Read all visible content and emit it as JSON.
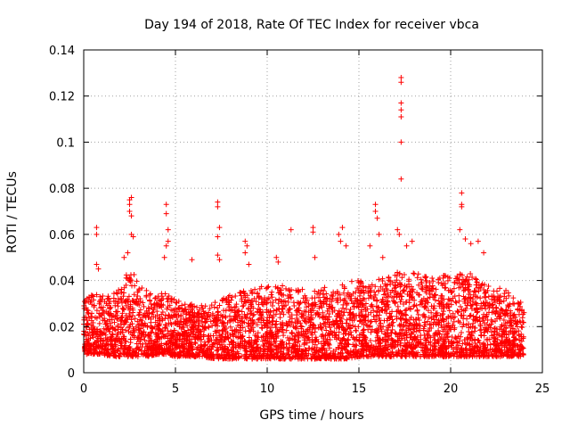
{
  "chart_data": {
    "type": "scatter",
    "title": "Day 194 of 2018, Rate Of TEC Index for receiver vbca",
    "xlabel": "GPS time / hours",
    "ylabel": "ROTI / TECUs",
    "xlim": [
      0,
      25
    ],
    "ylim": [
      0,
      0.14
    ],
    "xticks": [
      "0",
      "5",
      "10",
      "15",
      "20",
      "25"
    ],
    "yticks": [
      "0",
      "0.02",
      "0.04",
      "0.06",
      "0.08",
      "0.1",
      "0.12",
      "0.14"
    ],
    "grid": true,
    "marker": "+",
    "marker_color": "#ff0000",
    "density_envelope": {
      "x": [
        0,
        0.5,
        1,
        1.5,
        2,
        2.5,
        3,
        3.5,
        4,
        4.5,
        5,
        5.5,
        6,
        6.5,
        7,
        7.5,
        8,
        8.5,
        9,
        9.5,
        10,
        10.5,
        11,
        11.5,
        12,
        12.5,
        13,
        13.5,
        14,
        14.5,
        15,
        15.5,
        16,
        16.5,
        17,
        17.5,
        18,
        18.5,
        19,
        19.5,
        20,
        20.5,
        21,
        21.5,
        22,
        22.5,
        23,
        23.5,
        24
      ],
      "y_low": [
        0.008,
        0.008,
        0.008,
        0.007,
        0.007,
        0.007,
        0.007,
        0.007,
        0.008,
        0.008,
        0.007,
        0.007,
        0.007,
        0.007,
        0.006,
        0.006,
        0.006,
        0.006,
        0.006,
        0.006,
        0.006,
        0.006,
        0.006,
        0.006,
        0.006,
        0.006,
        0.006,
        0.006,
        0.006,
        0.006,
        0.007,
        0.007,
        0.007,
        0.007,
        0.007,
        0.007,
        0.007,
        0.007,
        0.007,
        0.007,
        0.007,
        0.007,
        0.007,
        0.007,
        0.007,
        0.007,
        0.007,
        0.007,
        0.007
      ],
      "y_high": [
        0.032,
        0.034,
        0.035,
        0.033,
        0.038,
        0.046,
        0.04,
        0.035,
        0.034,
        0.035,
        0.032,
        0.03,
        0.03,
        0.029,
        0.03,
        0.032,
        0.034,
        0.035,
        0.036,
        0.037,
        0.038,
        0.038,
        0.038,
        0.037,
        0.036,
        0.036,
        0.037,
        0.038,
        0.039,
        0.04,
        0.04,
        0.04,
        0.041,
        0.042,
        0.044,
        0.045,
        0.044,
        0.043,
        0.042,
        0.042,
        0.043,
        0.047,
        0.044,
        0.04,
        0.038,
        0.037,
        0.036,
        0.035,
        0.033
      ]
    },
    "outliers": [
      {
        "x": 0.7,
        "y": 0.063
      },
      {
        "x": 0.7,
        "y": 0.06
      },
      {
        "x": 0.7,
        "y": 0.047
      },
      {
        "x": 0.8,
        "y": 0.045
      },
      {
        "x": 2.4,
        "y": 0.052
      },
      {
        "x": 2.5,
        "y": 0.075
      },
      {
        "x": 2.5,
        "y": 0.073
      },
      {
        "x": 2.5,
        "y": 0.07
      },
      {
        "x": 2.6,
        "y": 0.076
      },
      {
        "x": 2.6,
        "y": 0.068
      },
      {
        "x": 2.6,
        "y": 0.06
      },
      {
        "x": 2.7,
        "y": 0.059
      },
      {
        "x": 2.2,
        "y": 0.05
      },
      {
        "x": 4.5,
        "y": 0.073
      },
      {
        "x": 4.5,
        "y": 0.069
      },
      {
        "x": 4.6,
        "y": 0.062
      },
      {
        "x": 4.6,
        "y": 0.057
      },
      {
        "x": 4.5,
        "y": 0.055
      },
      {
        "x": 4.4,
        "y": 0.05
      },
      {
        "x": 5.9,
        "y": 0.049
      },
      {
        "x": 7.3,
        "y": 0.074
      },
      {
        "x": 7.3,
        "y": 0.072
      },
      {
        "x": 7.4,
        "y": 0.063
      },
      {
        "x": 7.3,
        "y": 0.059
      },
      {
        "x": 7.3,
        "y": 0.051
      },
      {
        "x": 7.4,
        "y": 0.049
      },
      {
        "x": 8.8,
        "y": 0.057
      },
      {
        "x": 8.9,
        "y": 0.055
      },
      {
        "x": 8.8,
        "y": 0.052
      },
      {
        "x": 9.0,
        "y": 0.047
      },
      {
        "x": 10.5,
        "y": 0.05
      },
      {
        "x": 10.6,
        "y": 0.048
      },
      {
        "x": 11.3,
        "y": 0.062
      },
      {
        "x": 12.5,
        "y": 0.063
      },
      {
        "x": 12.5,
        "y": 0.061
      },
      {
        "x": 12.6,
        "y": 0.05
      },
      {
        "x": 13.9,
        "y": 0.06
      },
      {
        "x": 14.1,
        "y": 0.063
      },
      {
        "x": 14.0,
        "y": 0.057
      },
      {
        "x": 14.3,
        "y": 0.055
      },
      {
        "x": 15.6,
        "y": 0.055
      },
      {
        "x": 15.9,
        "y": 0.073
      },
      {
        "x": 15.9,
        "y": 0.07
      },
      {
        "x": 16.0,
        "y": 0.067
      },
      {
        "x": 16.1,
        "y": 0.06
      },
      {
        "x": 16.3,
        "y": 0.05
      },
      {
        "x": 17.1,
        "y": 0.062
      },
      {
        "x": 17.2,
        "y": 0.06
      },
      {
        "x": 17.3,
        "y": 0.128
      },
      {
        "x": 17.3,
        "y": 0.126
      },
      {
        "x": 17.3,
        "y": 0.117
      },
      {
        "x": 17.3,
        "y": 0.114
      },
      {
        "x": 17.3,
        "y": 0.111
      },
      {
        "x": 17.3,
        "y": 0.1
      },
      {
        "x": 17.3,
        "y": 0.084
      },
      {
        "x": 17.6,
        "y": 0.055
      },
      {
        "x": 17.9,
        "y": 0.057
      },
      {
        "x": 20.6,
        "y": 0.078
      },
      {
        "x": 20.6,
        "y": 0.073
      },
      {
        "x": 20.6,
        "y": 0.072
      },
      {
        "x": 20.5,
        "y": 0.062
      },
      {
        "x": 20.8,
        "y": 0.058
      },
      {
        "x": 21.1,
        "y": 0.056
      },
      {
        "x": 21.5,
        "y": 0.057
      },
      {
        "x": 21.8,
        "y": 0.052
      }
    ]
  }
}
